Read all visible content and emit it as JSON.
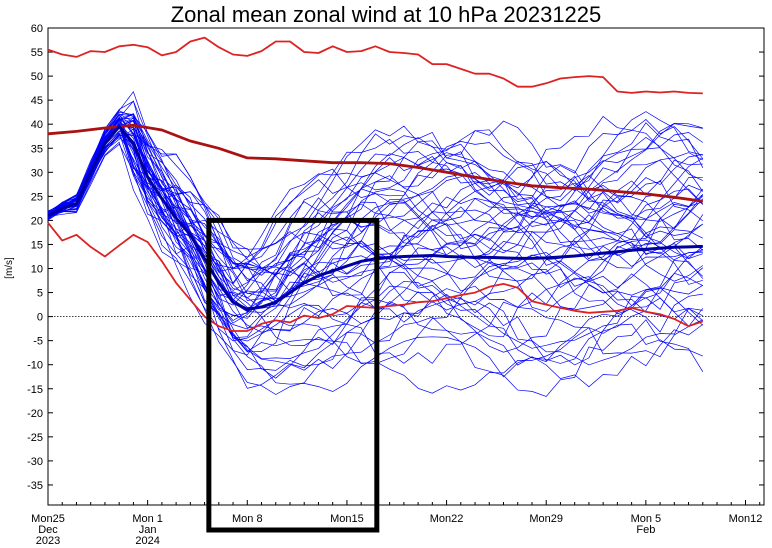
{
  "chart_data": {
    "type": "line",
    "title": "Zonal mean zonal wind at 10 hPa 20231225",
    "ylabel": "[m/s]",
    "ylim": [
      -40,
      60
    ],
    "yticks": [
      60,
      55,
      50,
      45,
      40,
      35,
      30,
      25,
      20,
      15,
      10,
      5,
      0,
      -5,
      -10,
      -15,
      -20,
      -25,
      -30,
      -35
    ],
    "xlim": [
      0,
      48
    ],
    "xticks": [
      {
        "x": 0,
        "lines": [
          "Mon25",
          "Dec",
          "2023"
        ]
      },
      {
        "x": 7,
        "lines": [
          "Mon 1",
          "Jan",
          "2024"
        ]
      },
      {
        "x": 14,
        "lines": [
          "Mon 8"
        ]
      },
      {
        "x": 21,
        "lines": [
          "Mon15"
        ]
      },
      {
        "x": 28,
        "lines": [
          "Mon22"
        ]
      },
      {
        "x": 35,
        "lines": [
          "Mon29"
        ]
      },
      {
        "x": 42,
        "lines": [
          "Mon 5",
          "Feb"
        ]
      },
      {
        "x": 49,
        "lines": [
          "Mon12"
        ]
      }
    ],
    "zero_line": true,
    "series": [
      {
        "role": "climatology-max",
        "color": "#dd2222",
        "x": [
          0,
          1,
          2,
          3,
          4,
          5,
          6,
          7,
          8,
          9,
          10,
          11,
          12,
          13,
          14,
          15,
          16,
          17,
          18,
          19,
          20,
          21,
          22,
          23,
          24,
          25,
          26,
          27,
          28,
          29,
          30,
          31,
          32,
          33,
          34,
          35,
          36,
          37,
          38,
          39,
          40,
          41,
          42,
          43,
          44,
          45,
          46
        ],
        "values": [
          55.5,
          54.5,
          54,
          55.2,
          55,
          56.2,
          56.5,
          56,
          54.3,
          55,
          57.2,
          58,
          56,
          54.5,
          54.2,
          55.2,
          57.2,
          57.2,
          55,
          54.8,
          56.2,
          55,
          55.2,
          56.2,
          55,
          54.8,
          54.5,
          52.5,
          52.5,
          51.5,
          50.5,
          50.5,
          49.5,
          47.8,
          47.8,
          48.5,
          49.5,
          49.8,
          50,
          49.8,
          46.8,
          46.5,
          46.8,
          46.6,
          46.8,
          46.5,
          46.4
        ]
      },
      {
        "role": "climatology-mean",
        "color": "#aa1111",
        "x": [
          0,
          2,
          4,
          6,
          8,
          10,
          12,
          14,
          16,
          18,
          20,
          22,
          24,
          26,
          28,
          30,
          32,
          34,
          36,
          38,
          40,
          42,
          44,
          46
        ],
        "values": [
          38,
          38.5,
          39.2,
          39.8,
          38.8,
          36.5,
          35,
          33,
          32.8,
          32.4,
          32,
          32,
          31.8,
          31,
          30,
          29,
          28,
          27.2,
          26.8,
          26.5,
          26,
          25.5,
          24.8,
          24
        ]
      },
      {
        "role": "climatology-min",
        "color": "#dd2222",
        "x": [
          0,
          1,
          2,
          3,
          4,
          5,
          6,
          7,
          8,
          9,
          10,
          11,
          12,
          13,
          14,
          15,
          16,
          17,
          18,
          19,
          20,
          21,
          22,
          23,
          24,
          25,
          26,
          27,
          28,
          29,
          30,
          31,
          32,
          33,
          34,
          35,
          36,
          37,
          38,
          39,
          40,
          41,
          42,
          43,
          44,
          45,
          46
        ],
        "values": [
          19.5,
          15.8,
          17,
          14.5,
          12.5,
          14.8,
          17,
          15.5,
          11.5,
          7,
          3.5,
          0,
          -2,
          -3,
          -3,
          -1.5,
          -0.8,
          -1.2,
          0.2,
          -0.3,
          0.5,
          2.2,
          2,
          1.8,
          2.2,
          2.5,
          3,
          3.2,
          3.8,
          4.5,
          5,
          6.2,
          6.8,
          6,
          3.2,
          2.5,
          1.8,
          1.2,
          0.8,
          1,
          1.2,
          1.8,
          1,
          0.5,
          -0.5,
          -2,
          -1
        ]
      },
      {
        "role": "ensemble-mean",
        "color": "#0000a0",
        "x": [
          0,
          1,
          2,
          3,
          4,
          5,
          6,
          7,
          8,
          9,
          10,
          11,
          12,
          13,
          14,
          15,
          16,
          17,
          18,
          19,
          20,
          21,
          22,
          23,
          24,
          25,
          26,
          27,
          28,
          29,
          30,
          31,
          32,
          33,
          34,
          35,
          36,
          37,
          38,
          39,
          40,
          41,
          42,
          43,
          44,
          45,
          46
        ],
        "values": [
          21,
          22.5,
          23.5,
          30,
          36,
          39.5,
          36,
          29,
          24.5,
          20.5,
          17,
          12,
          7,
          3,
          1.5,
          2,
          3,
          5,
          7,
          8.5,
          9.5,
          10.5,
          11.5,
          12,
          12.3,
          12.5,
          12.6,
          12.7,
          12.5,
          12.4,
          12.3,
          12.3,
          12.2,
          12.1,
          12.1,
          12.2,
          12.4,
          12.6,
          12.9,
          13.2,
          13.5,
          13.8,
          14,
          14.2,
          14.4,
          14.5,
          14.6
        ]
      }
    ],
    "ensemble": {
      "color": "#0000ff",
      "members": 50,
      "x_end": 46
    },
    "highlight_box": {
      "x_start": 11.3,
      "x_end": 23.1,
      "y_top": 20,
      "y_bottom": -45,
      "color": "#000000"
    }
  }
}
